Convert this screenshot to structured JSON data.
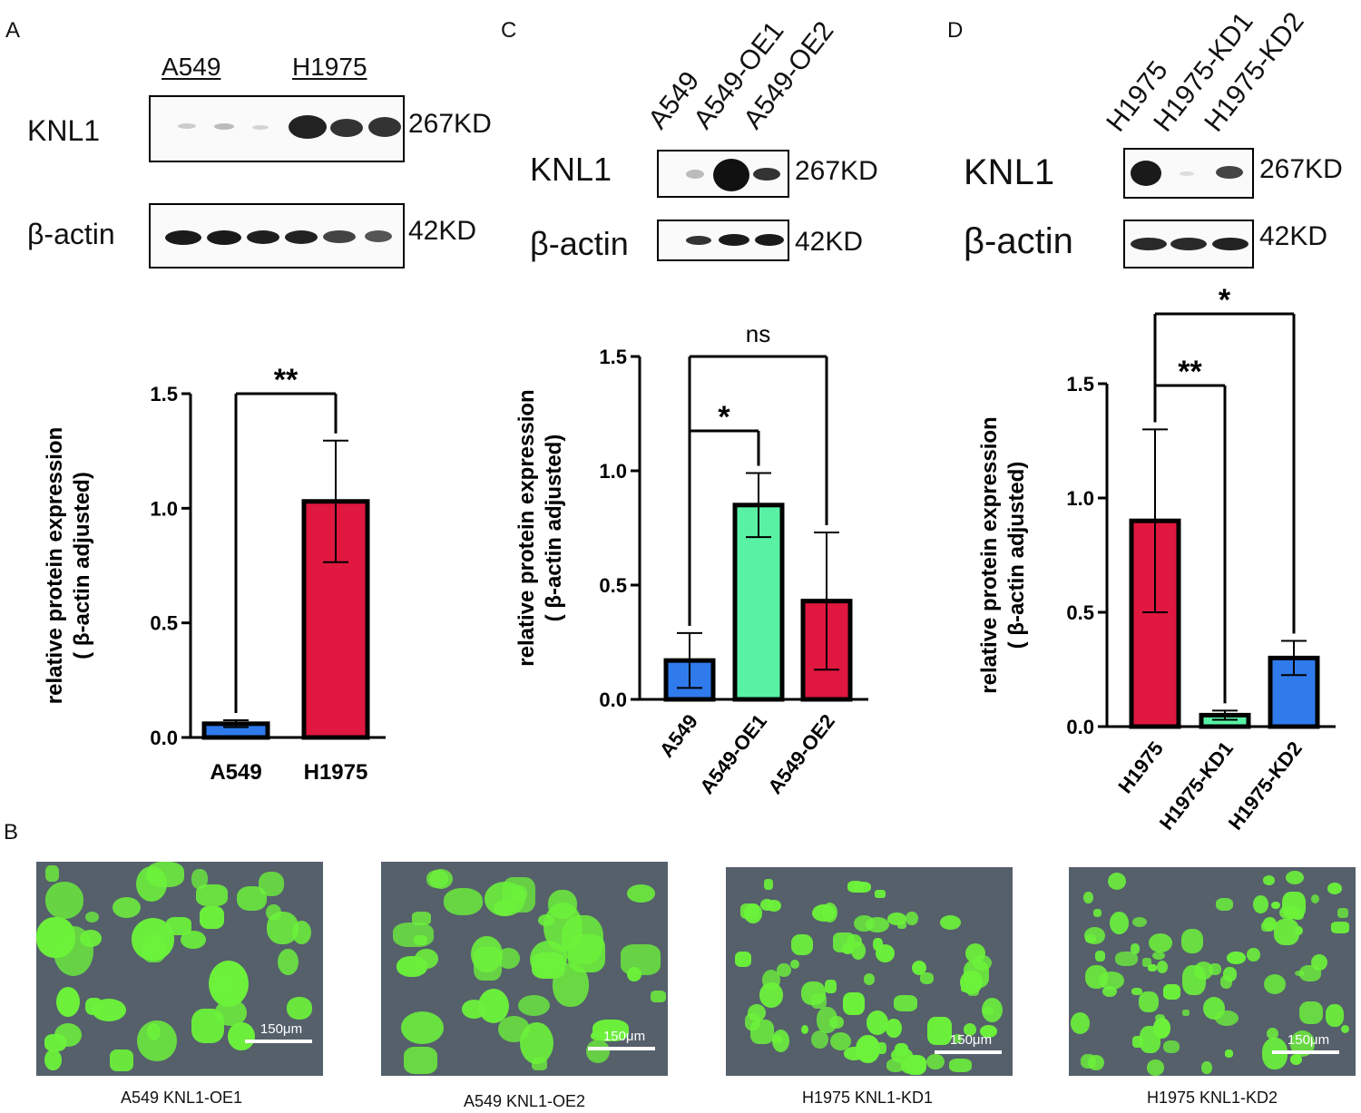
{
  "panels": {
    "A": "A",
    "B": "B",
    "C": "C",
    "D": "D"
  },
  "panel_a": {
    "group_labels": [
      "A549",
      "H1975"
    ],
    "protein_labels": [
      "KNL1",
      "β-actin"
    ],
    "size_labels": [
      "267KD",
      "42KD"
    ]
  },
  "panel_c": {
    "lane_labels": [
      "A549",
      "A549-OE1",
      "A549-OE2"
    ],
    "protein_labels": [
      "KNL1",
      "β-actin"
    ],
    "size_labels": [
      "267KD",
      "42KD"
    ]
  },
  "panel_d": {
    "lane_labels": [
      "H1975",
      "H1975-KD1",
      "H1975-KD2"
    ],
    "protein_labels": [
      "KNL1",
      "β-actin"
    ],
    "size_labels": [
      "267KD",
      "42KD"
    ]
  },
  "panel_b": {
    "scale_bar": "150μm",
    "captions": [
      "A549 KNL1-OE1",
      "A549 KNL1-OE2",
      "H1975 KNL1-KD1",
      "H1975 KNL1-KD2"
    ]
  },
  "colors": {
    "blue": "#2f7bec",
    "red": "#e0173f",
    "green": "#59f2a5",
    "gfp": "#6cf23a"
  },
  "chart_data": [
    {
      "type": "bar",
      "panel": "A",
      "categories": [
        "A549",
        "H1975"
      ],
      "values": [
        0.06,
        1.03
      ],
      "errors": [
        0.015,
        0.265
      ],
      "bar_colors": [
        "#2f7bec",
        "#e0173f"
      ],
      "ylabel": [
        "relative protein expression",
        "( β-actin adjusted)"
      ],
      "ylim": [
        0,
        1.5
      ],
      "yticks": [
        "0.0",
        "0.5",
        "1.0",
        "1.5"
      ],
      "significance": [
        {
          "from": 0,
          "to": 1,
          "label": "**"
        }
      ]
    },
    {
      "type": "bar",
      "panel": "C",
      "categories": [
        "A549",
        "A549-OE1",
        "A549-OE2"
      ],
      "values": [
        0.17,
        0.85,
        0.43
      ],
      "errors": [
        0.12,
        0.14,
        0.3
      ],
      "bar_colors": [
        "#2f7bec",
        "#59f2a5",
        "#e0173f"
      ],
      "ylabel": [
        "relative protein expression",
        "( β-actin adjusted)"
      ],
      "ylim": [
        0,
        1.5
      ],
      "yticks": [
        "0.0",
        "0.5",
        "1.0",
        "1.5"
      ],
      "significance": [
        {
          "from": 0,
          "to": 1,
          "label": "*"
        },
        {
          "from": 0,
          "to": 2,
          "label": "ns"
        }
      ]
    },
    {
      "type": "bar",
      "panel": "D",
      "categories": [
        "H1975",
        "H1975-KD1",
        "H1975-KD2"
      ],
      "values": [
        0.9,
        0.05,
        0.3
      ],
      "errors": [
        0.4,
        0.02,
        0.075
      ],
      "bar_colors": [
        "#e0173f",
        "#59f2a5",
        "#2f7bec"
      ],
      "ylabel": [
        "relative protein expression",
        "( β-actin adjusted)"
      ],
      "ylim": [
        0,
        1.5
      ],
      "yticks": [
        "0.0",
        "0.5",
        "1.0",
        "1.5"
      ],
      "significance": [
        {
          "from": 0,
          "to": 1,
          "label": "**"
        },
        {
          "from": 0,
          "to": 2,
          "label": "*"
        }
      ]
    }
  ]
}
